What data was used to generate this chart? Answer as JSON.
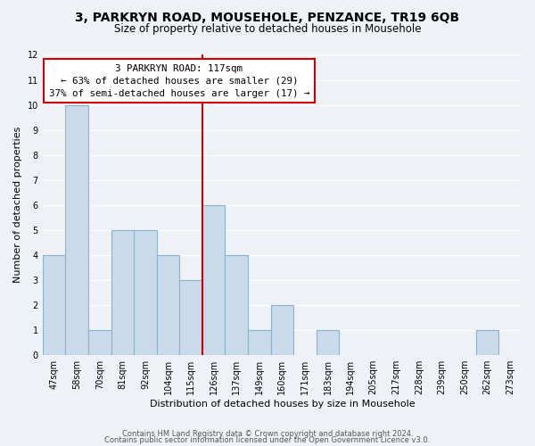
{
  "title": "3, PARKRYN ROAD, MOUSEHOLE, PENZANCE, TR19 6QB",
  "subtitle": "Size of property relative to detached houses in Mousehole",
  "xlabel": "Distribution of detached houses by size in Mousehole",
  "ylabel": "Number of detached properties",
  "bar_color": "#c9daea",
  "bar_edge_color": "#8ab4cc",
  "background_color": "#eef2f7",
  "grid_color": "#ffffff",
  "bins_labels": [
    "47sqm",
    "58sqm",
    "70sqm",
    "81sqm",
    "92sqm",
    "104sqm",
    "115sqm",
    "126sqm",
    "137sqm",
    "149sqm",
    "160sqm",
    "171sqm",
    "183sqm",
    "194sqm",
    "205sqm",
    "217sqm",
    "228sqm",
    "239sqm",
    "250sqm",
    "262sqm",
    "273sqm"
  ],
  "counts": [
    4,
    10,
    1,
    5,
    5,
    4,
    3,
    6,
    4,
    1,
    2,
    0,
    1,
    0,
    0,
    0,
    0,
    0,
    0,
    1,
    0
  ],
  "vline_pos": 7,
  "annotation_title": "3 PARKRYN ROAD: 117sqm",
  "annotation_line1": "← 63% of detached houses are smaller (29)",
  "annotation_line2": "37% of semi-detached houses are larger (17) →",
  "annotation_box_facecolor": "#ffffff",
  "annotation_box_edgecolor": "#cc0000",
  "vline_color": "#cc0000",
  "ylim": [
    0,
    12
  ],
  "yticks": [
    0,
    1,
    2,
    3,
    4,
    5,
    6,
    7,
    8,
    9,
    10,
    11,
    12
  ],
  "footer1": "Contains HM Land Registry data © Crown copyright and database right 2024.",
  "footer2": "Contains public sector information licensed under the Open Government Licence v3.0."
}
